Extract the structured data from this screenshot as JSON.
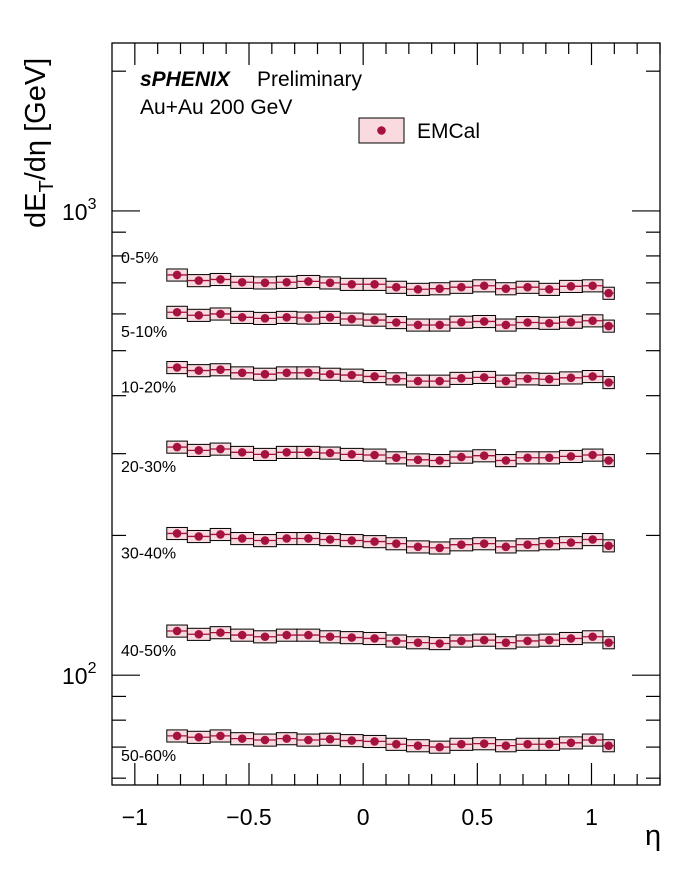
{
  "chart_data": {
    "type": "scatter",
    "title": "",
    "xlabel": "η",
    "ylabel": "dE_T/dη [GeV]",
    "ylabel_parts": {
      "main": "dE",
      "sub": "T",
      "rest": "/dη [GeV]"
    },
    "y_scale": "log",
    "xlim": [
      -1.1,
      1.3
    ],
    "ylim": [
      58,
      2300
    ],
    "x_ticks": [
      -1,
      -0.5,
      0,
      0.5,
      1
    ],
    "x_tick_labels": [
      "−1",
      "−0.5",
      "0",
      "0.5",
      "1"
    ],
    "y_tick_labels": [
      {
        "value": 1000,
        "base": "10",
        "exp": "3"
      },
      {
        "value": 100,
        "base": "10",
        "exp": "2"
      }
    ],
    "grid": false,
    "legend_placement": "top-center",
    "annotations": {
      "experiment": "sPHENIX",
      "status": "Preliminary",
      "system": "Au+Au 200 GeV"
    },
    "colors": {
      "marker": "#a6123f",
      "box_fill": "#f9dade",
      "box_edge": "#000000"
    },
    "eta_bins": [
      -0.86,
      -0.77,
      -0.67,
      -0.58,
      -0.48,
      -0.38,
      -0.29,
      -0.19,
      -0.1,
      0.0,
      0.1,
      0.19,
      0.29,
      0.38,
      0.48,
      0.58,
      0.67,
      0.77,
      0.86,
      0.96,
      1.05,
      1.1
    ],
    "x": [
      -0.815,
      -0.72,
      -0.625,
      -0.53,
      -0.43,
      -0.335,
      -0.24,
      -0.145,
      -0.05,
      0.05,
      0.145,
      0.24,
      0.335,
      0.43,
      0.53,
      0.625,
      0.72,
      0.815,
      0.91,
      1.005,
      1.075
    ],
    "series": [
      {
        "name": "EMCal",
        "centrality": "0-5%",
        "values": [
          728,
          708,
          712,
          702,
          700,
          702,
          705,
          700,
          695,
          695,
          685,
          678,
          680,
          685,
          690,
          680,
          685,
          678,
          688,
          690,
          665
        ]
      },
      {
        "name": "EMCal",
        "centrality": "5-10%",
        "values": [
          605,
          596,
          600,
          590,
          587,
          590,
          588,
          590,
          585,
          582,
          575,
          568,
          568,
          576,
          578,
          568,
          575,
          573,
          576,
          580,
          565
        ]
      },
      {
        "name": "EMCal",
        "centrality": "10-20%",
        "values": [
          460,
          453,
          455,
          448,
          445,
          448,
          448,
          445,
          443,
          440,
          435,
          430,
          430,
          436,
          438,
          430,
          435,
          434,
          437,
          440,
          427
        ]
      },
      {
        "name": "EMCal",
        "centrality": "20-30%",
        "values": [
          310,
          305,
          307,
          302,
          299,
          302,
          302,
          301,
          299,
          298,
          294,
          291,
          290,
          295,
          297,
          290,
          294,
          294,
          296,
          298,
          290
        ]
      },
      {
        "name": "EMCal",
        "centrality": "30-40%",
        "values": [
          202,
          199,
          201,
          197,
          195,
          197,
          197,
          196,
          195,
          194,
          192,
          189,
          188,
          191,
          192,
          189,
          191,
          192,
          193,
          196,
          190
        ]
      },
      {
        "name": "EMCal",
        "centrality": "40-50%",
        "values": [
          124.5,
          122.5,
          123.5,
          122,
          121,
          122,
          122,
          121,
          120.5,
          120,
          118.5,
          117.5,
          117,
          118.5,
          119,
          117.5,
          118.5,
          119,
          120,
          121,
          117.5
        ]
      },
      {
        "name": "EMCal",
        "centrality": "50-60%",
        "values": [
          74,
          73.5,
          74,
          73,
          72.5,
          73,
          72.5,
          72.8,
          72.3,
          72,
          71,
          70.5,
          70,
          71,
          71.2,
          70.5,
          71,
          71,
          71.5,
          72.5,
          70.5
        ]
      }
    ],
    "centrality_labels": [
      "0-5%",
      "5-10%",
      "10-20%",
      "20-30%",
      "30-40%",
      "40-50%",
      "50-60%"
    ],
    "label_offsets_mode": [
      "above",
      "below",
      "below",
      "below",
      "below",
      "below",
      "below"
    ],
    "box_rel_height": 0.03,
    "legend": [
      {
        "label": "EMCal",
        "marker": "circle",
        "box": true
      }
    ]
  }
}
